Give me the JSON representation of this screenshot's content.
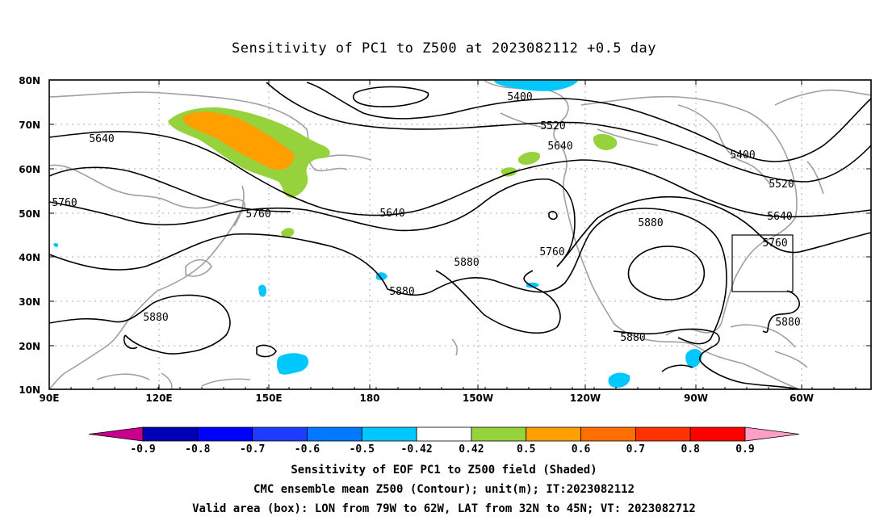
{
  "title": "Sensitivity of PC1 to Z500 at 2023082112 +0.5 day",
  "map": {
    "lat_labels": [
      "80N",
      "70N",
      "60N",
      "50N",
      "40N",
      "30N",
      "20N",
      "10N"
    ],
    "lon_labels": [
      "90E",
      "120E",
      "150E",
      "180",
      "150W",
      "120W",
      "90W",
      "60W"
    ],
    "contour_labels": [
      {
        "text": "5400",
        "id": "c5400a"
      },
      {
        "text": "5400",
        "id": "c5400b"
      },
      {
        "text": "5520",
        "id": "c5520a"
      },
      {
        "text": "5520",
        "id": "c5520b"
      },
      {
        "text": "5640",
        "id": "c5640a"
      },
      {
        "text": "5640",
        "id": "c5640b"
      },
      {
        "text": "5640",
        "id": "c5640c"
      },
      {
        "text": "5640",
        "id": "c5640d"
      },
      {
        "text": "5760",
        "id": "c5760a"
      },
      {
        "text": "5760",
        "id": "c5760b"
      },
      {
        "text": "5760",
        "id": "c5760c"
      },
      {
        "text": "5760",
        "id": "c5760d"
      },
      {
        "text": "5880",
        "id": "c5880a"
      },
      {
        "text": "5880",
        "id": "c5880b"
      },
      {
        "text": "5880",
        "id": "c5880c"
      },
      {
        "text": "5880",
        "id": "c5880d"
      },
      {
        "text": "5880",
        "id": "c5880e"
      },
      {
        "text": "5880",
        "id": "c5880f"
      }
    ],
    "valid_box": {
      "lon_from": "79W",
      "lon_to": "62W",
      "lat_from": "32N",
      "lat_to": "45N"
    }
  },
  "colorbar": {
    "labels": [
      "-0.9",
      "-0.8",
      "-0.7",
      "-0.6",
      "-0.5",
      "-0.42",
      "0.42",
      "0.5",
      "0.6",
      "0.7",
      "0.8",
      "0.9"
    ],
    "colors": [
      "#c8008c",
      "#0000b4",
      "#0000ff",
      "#1e3cff",
      "#0078ff",
      "#00c8ff",
      "#ffffff",
      "#96d23c",
      "#ffa000",
      "#ff6e00",
      "#ff3200",
      "#ff0000",
      "#ff9ec8"
    ]
  },
  "captions": [
    "Sensitivity of EOF PC1 to Z500 field (Shaded)",
    "CMC ensemble mean Z500 (Contour); unit(m); IT:2023082112",
    "Valid area (box): LON from 79W to 62W, LAT from 32N to 45N; VT: 2023082712"
  ]
}
